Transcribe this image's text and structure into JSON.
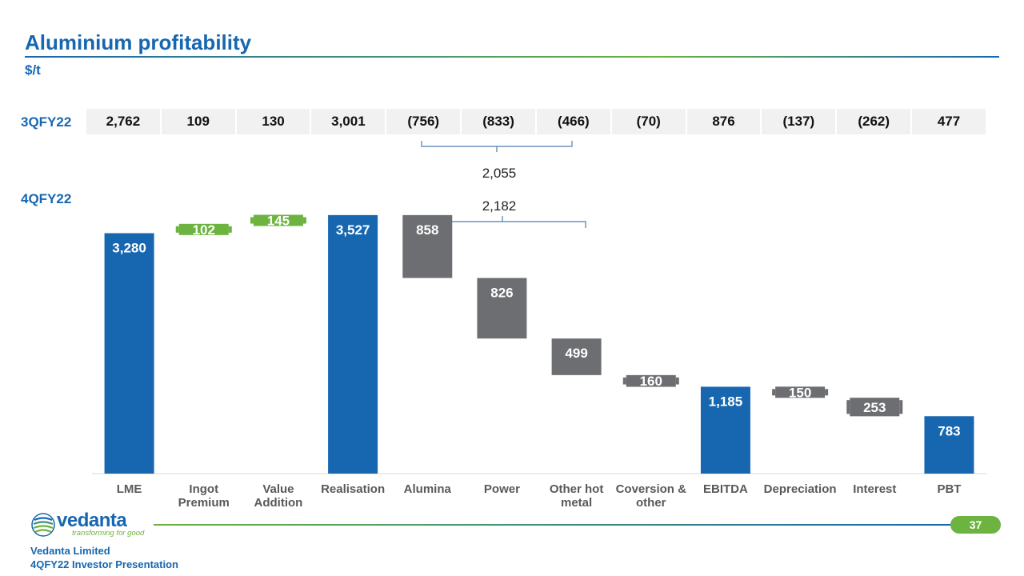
{
  "header": {
    "title": "Aluminium profitability",
    "unit": "$/t"
  },
  "period_labels": {
    "previous": "3QFY22",
    "current": "4QFY22"
  },
  "previous_quarter_row": [
    "2,762",
    "109",
    "130",
    "3,001",
    "(756)",
    "(833)",
    "(466)",
    "(70)",
    "876",
    "(137)",
    "(262)",
    "477"
  ],
  "brace_totals": {
    "previous": "2,055",
    "current": "2,182"
  },
  "chart_data": {
    "type": "waterfall",
    "title": "Aluminium profitability",
    "ylabel": "$/t",
    "ylim": [
      0,
      3700
    ],
    "categories": [
      "LME",
      "Ingot\nPremium",
      "Value\nAddition",
      "Realisation",
      "Alumina",
      "Power",
      "Other hot\nmetal",
      "Coversion &\nother",
      "EBITDA",
      "Depreciation",
      "Interest",
      "PBT"
    ],
    "values": [
      3280,
      102,
      145,
      3527,
      858,
      826,
      499,
      160,
      1185,
      150,
      253,
      783
    ],
    "labels": [
      "3,280",
      "102",
      "145",
      "3,527",
      "858",
      "826",
      "499",
      "160",
      "1,185",
      "150",
      "253",
      "783"
    ],
    "kinds": [
      "total",
      "increase",
      "increase",
      "total",
      "decrease",
      "decrease",
      "decrease",
      "decrease",
      "total",
      "decrease",
      "decrease",
      "total"
    ],
    "colors": {
      "total": "#1767b0",
      "increase": "#6cb33f",
      "decrease": "#6d6e71"
    }
  },
  "footer": {
    "logo_word": "vedanta",
    "logo_tagline": "transforming for good",
    "company": "Vedanta Limited",
    "presentation": "4QFY22 Investor Presentation",
    "page_number": "37"
  }
}
